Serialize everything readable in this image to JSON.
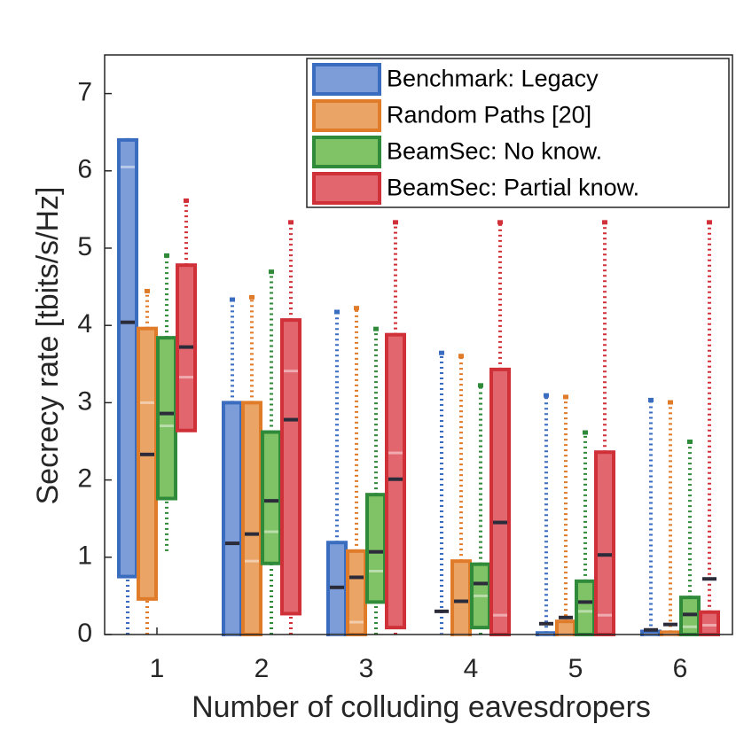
{
  "chart_data": {
    "type": "box",
    "xlabel": "Number of colluding eavesdropers",
    "ylabel": "Secrecy rate [tbits/s/Hz]",
    "categories": [
      "1",
      "2",
      "3",
      "4",
      "5",
      "6"
    ],
    "ylim": [
      0,
      7.5
    ],
    "yticks": [
      0,
      1,
      2,
      3,
      4,
      5,
      6,
      7
    ],
    "legend": "upper right",
    "series": [
      {
        "name": "Benchmark: Legacy",
        "color": "#3a6cc0",
        "fill": "#7d9dd8",
        "whisker_low": [
          0,
          0,
          0,
          0,
          0,
          0
        ],
        "q1": [
          0.75,
          0,
          0,
          0,
          0,
          0
        ],
        "median": [
          6.05,
          0,
          0,
          0,
          0,
          0
        ],
        "q3": [
          6.4,
          3.0,
          1.19,
          0,
          0.02,
          0.04
        ],
        "whisker_high": [
          6.4,
          4.34,
          4.18,
          3.65,
          3.1,
          3.04
        ],
        "mean": [
          4.04,
          1.18,
          0.61,
          0.3,
          0.14,
          0.06
        ]
      },
      {
        "name": "Random Paths [20]",
        "color": "#e07b2a",
        "fill": "#eaa466",
        "whisker_low": [
          0,
          0,
          0,
          0,
          0,
          0
        ],
        "q1": [
          0.46,
          0,
          0,
          0,
          0,
          0
        ],
        "median": [
          3.0,
          0.95,
          0.16,
          0,
          0,
          0
        ],
        "q3": [
          3.96,
          3.0,
          1.08,
          0.95,
          0.17,
          0.03
        ],
        "whisker_high": [
          4.45,
          4.37,
          4.23,
          3.61,
          3.08,
          3.01
        ],
        "mean": [
          2.33,
          1.3,
          0.74,
          0.43,
          0.22,
          0.13
        ]
      },
      {
        "name": "BeamSec: No know.",
        "color": "#2f8a3a",
        "fill": "#80c266",
        "whisker_low": [
          1.08,
          0,
          0,
          0,
          0,
          0
        ],
        "q1": [
          1.76,
          0.92,
          0.42,
          0.09,
          0,
          0
        ],
        "median": [
          2.7,
          1.33,
          0.82,
          0.5,
          0.3,
          0.1
        ],
        "q3": [
          3.84,
          2.62,
          1.81,
          0.91,
          0.69,
          0.48
        ],
        "whisker_high": [
          4.91,
          4.7,
          3.96,
          3.23,
          2.62,
          2.5
        ],
        "mean": [
          2.86,
          1.73,
          1.07,
          0.66,
          0.42,
          0.26
        ]
      },
      {
        "name": "BeamSec: Partial know.",
        "color": "#d03038",
        "fill": "#e2666e",
        "whisker_low": [
          2.64,
          0,
          0,
          0,
          0,
          0
        ],
        "q1": [
          2.64,
          0.27,
          0.09,
          0,
          0,
          0
        ],
        "median": [
          3.33,
          3.41,
          2.35,
          0.25,
          0.25,
          0.12
        ],
        "q3": [
          4.78,
          4.07,
          3.88,
          3.43,
          2.36,
          0.29
        ],
        "whisker_high": [
          5.62,
          5.34,
          5.34,
          5.34,
          5.34,
          5.34
        ],
        "mean": [
          3.72,
          2.78,
          2.01,
          1.45,
          1.03,
          0.72
        ]
      }
    ]
  }
}
